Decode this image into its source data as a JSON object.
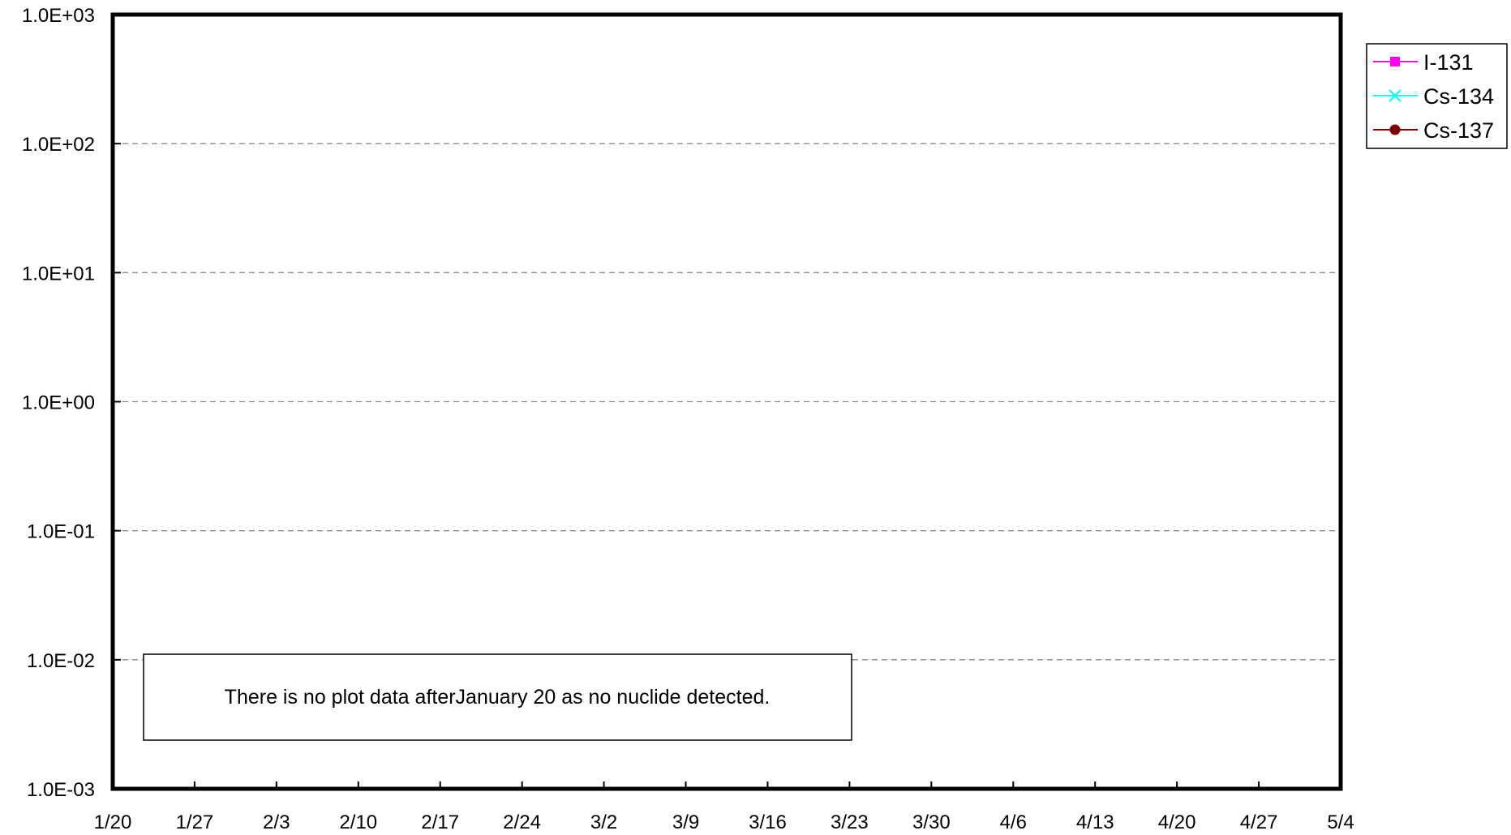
{
  "chart_data": {
    "type": "line",
    "y_scale": "log",
    "ylim": [
      0.001,
      1000
    ],
    "y_tick_labels": [
      "1.0E+03",
      "1.0E+02",
      "1.0E+01",
      "1.0E+00",
      "1.0E-01",
      "1.0E-02",
      "1.0E-03"
    ],
    "x_tick_labels": [
      "1/20",
      "1/27",
      "2/3",
      "2/10",
      "2/17",
      "2/24",
      "3/2",
      "3/9",
      "3/16",
      "3/23",
      "3/30",
      "4/6",
      "4/13",
      "4/20",
      "4/27",
      "5/4"
    ],
    "grid": "horizontal dashed",
    "legend_position": "top-right outside",
    "series": [
      {
        "name": "I-131",
        "color": "#ff00ff",
        "marker": "square",
        "values": []
      },
      {
        "name": "Cs-134",
        "color": "#00ffff",
        "marker": "x",
        "values": []
      },
      {
        "name": "Cs-137",
        "color": "#800000",
        "marker": "circle",
        "values": []
      }
    ],
    "annotation": "There is no plot data afterJanuary 20 as no nuclide detected."
  }
}
